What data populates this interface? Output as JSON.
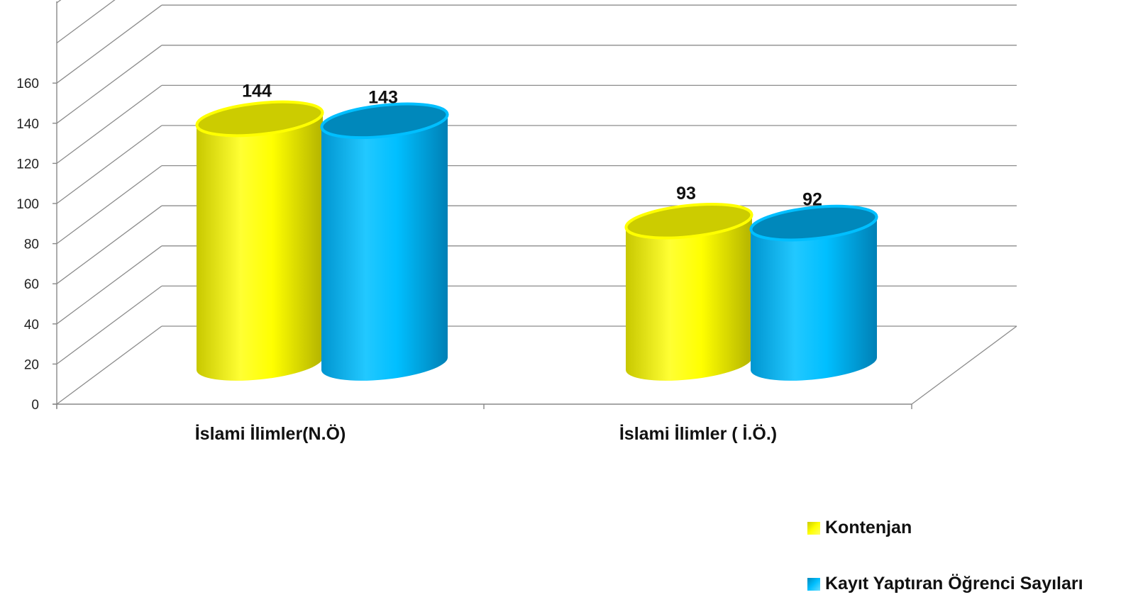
{
  "chart_data": {
    "type": "bar",
    "style": "3d-cylinder",
    "categories": [
      "İslami İlimler(N.Ö)",
      "İslami İlimler ( İ.Ö.)"
    ],
    "series": [
      {
        "name": "Kontenjan",
        "values": [
          144,
          93
        ],
        "color": "#ffff00",
        "top_color": "#cccc00"
      },
      {
        "name": "Kayıt Yaptıran Öğrenci Sayıları",
        "values": [
          143,
          92
        ],
        "color": "#00bfff",
        "top_color": "#0088bb"
      }
    ],
    "yticks": [
      0,
      20,
      40,
      60,
      80,
      100,
      120,
      140,
      160
    ],
    "ylim": [
      0,
      200
    ],
    "data_labels": true,
    "grid": true,
    "legend_position": "bottom-right"
  }
}
